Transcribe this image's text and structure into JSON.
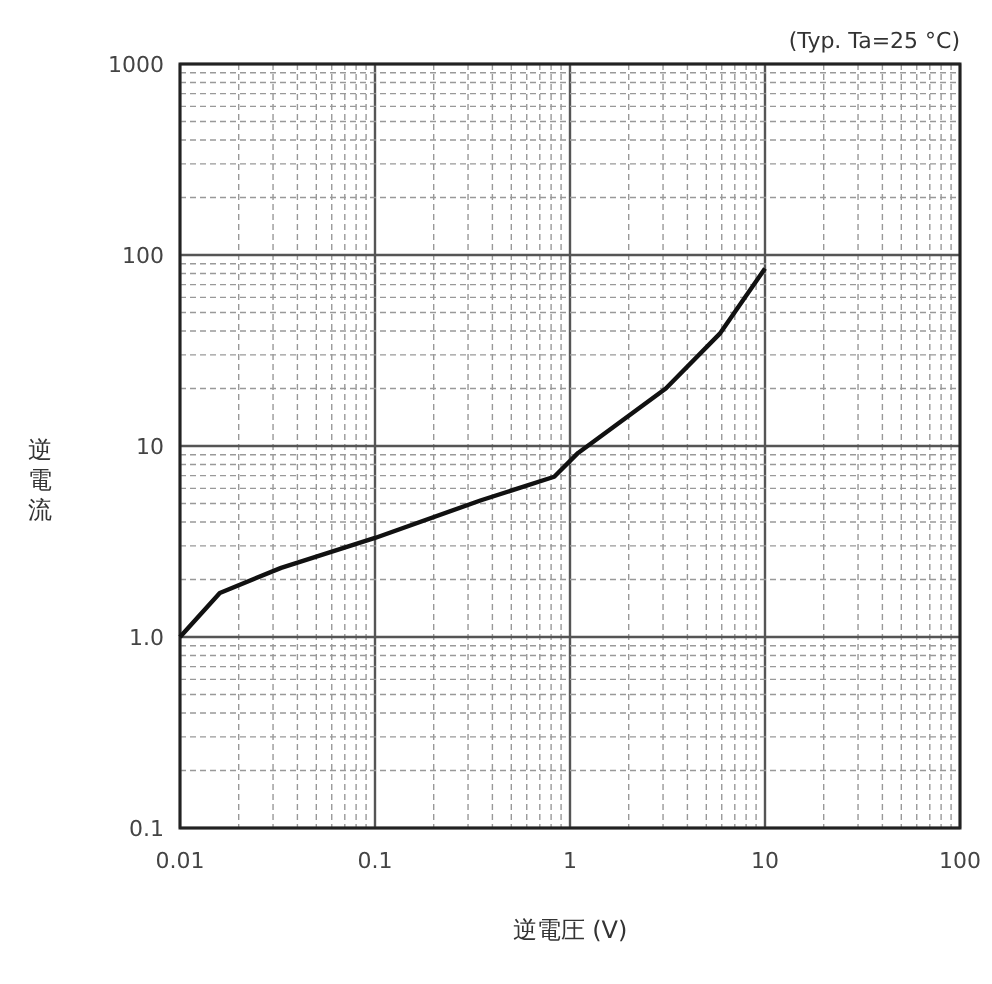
{
  "chart_data": {
    "type": "line",
    "xlabel": "逆電圧 (V)",
    "ylabel": "逆電流",
    "annotations": [
      "(Typ. Ta=25 °C)"
    ],
    "log": "xy",
    "grid": true,
    "marker": "none",
    "line_style": "solid",
    "color": "#111111",
    "x": [
      0.01,
      0.016,
      0.033,
      0.1,
      0.35,
      0.83,
      1.1,
      3.1,
      5.9,
      10
    ],
    "values": [
      1.0,
      1.7,
      2.3,
      3.3,
      5.2,
      6.9,
      9.2,
      20,
      39,
      85
    ],
    "xlim": [
      0.01,
      100
    ],
    "xticks": [
      0.01,
      0.1,
      1,
      10,
      100
    ],
    "ylim": [
      0.1,
      1000
    ],
    "yticks": [
      0.1,
      {
        "value": 1,
        "label": "1.0"
      },
      10,
      100,
      1000
    ]
  }
}
